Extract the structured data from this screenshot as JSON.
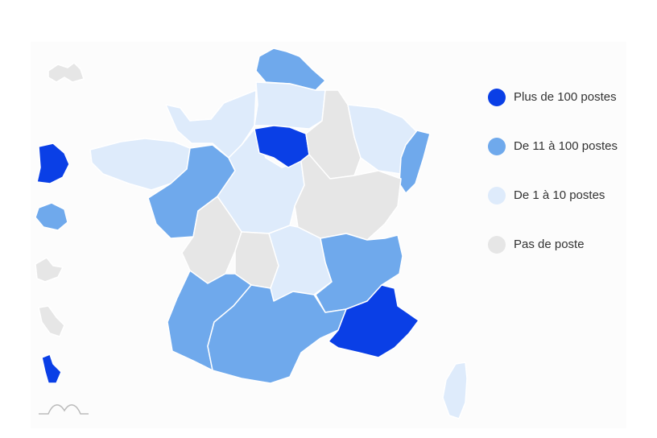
{
  "legend": {
    "items": [
      {
        "label": "Plus de 100 postes",
        "color": "#0a3fe6"
      },
      {
        "label": "De 11 à 100 postes",
        "color": "#6fa9ec"
      },
      {
        "label": "De 1 à 10 postes",
        "color": "#deebfb"
      },
      {
        "label": "Pas de poste",
        "color": "#e6e6e6"
      }
    ]
  }
}
